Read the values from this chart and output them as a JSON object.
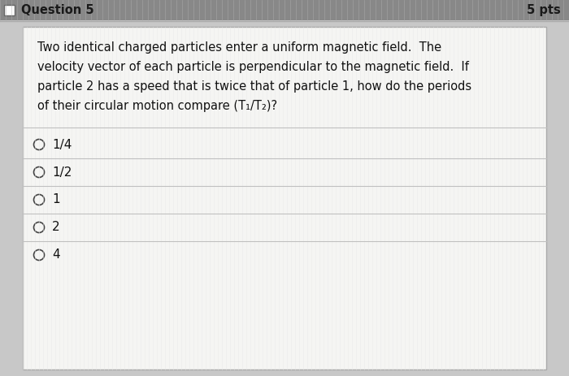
{
  "header_text": "Question 5",
  "pts_text": "5 pts",
  "question_text_lines": [
    "Two identical charged particles enter a uniform magnetic field.  The",
    "velocity vector of each particle is perpendicular to the magnetic field.  If",
    "particle 2 has a speed that is twice that of particle 1, how do the periods",
    "of their circular motion compare (T₁/T₂)?"
  ],
  "options": [
    "1/4",
    "1/2",
    "1",
    "2",
    "4"
  ],
  "outer_bg": "#c8c8c8",
  "header_bg": "#888888",
  "content_bg": "#f0f0ee",
  "box_border": "#999999",
  "text_color": "#111111",
  "header_text_color": "#1a1a1a",
  "divider_color": "#c0c0c0",
  "radio_color": "#444444",
  "stripe_color": "#b8b8b8",
  "fig_width": 7.0,
  "fig_height": 4.63,
  "dpi": 100
}
